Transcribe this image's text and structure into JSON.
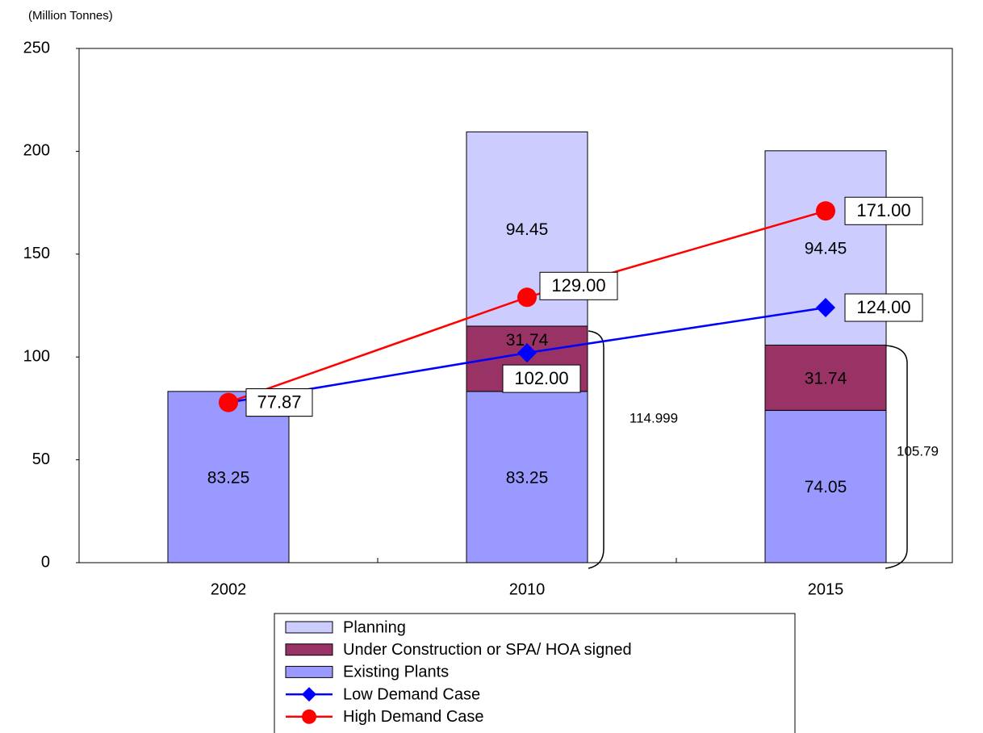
{
  "chart_data": {
    "type": "bar",
    "y_label": "(Million Tonnes)",
    "categories": [
      "2002",
      "2010",
      "2015"
    ],
    "ylim": [
      0,
      250
    ],
    "yticks": [
      0,
      50,
      100,
      150,
      200,
      250
    ],
    "grid": false,
    "series": [
      {
        "name": "Planning",
        "type": "bar",
        "color": "#ccccff",
        "values": [
          null,
          94.45,
          94.45
        ]
      },
      {
        "name": "Under Construction or SPA/ HOA signed",
        "type": "bar",
        "color": "#993366",
        "values": [
          null,
          31.74,
          31.74
        ]
      },
      {
        "name": "Existing Plants",
        "type": "bar",
        "color": "#9999ff",
        "values": [
          83.25,
          83.25,
          74.05
        ]
      },
      {
        "name": "Low Demand Case",
        "type": "line",
        "marker": "diamond",
        "color": "#0000ff",
        "values": [
          77.87,
          102,
          124
        ],
        "value_labels": [
          "77.87",
          "102.00",
          "124.00"
        ]
      },
      {
        "name": "High Demand Case",
        "type": "line",
        "marker": "circle",
        "color": "#ff0000",
        "values": [
          77.87,
          129,
          171
        ],
        "value_labels": [
          "77.87",
          "129.00",
          "171.00"
        ]
      }
    ],
    "annotations": [
      {
        "text": "114.999"
      },
      {
        "text": "105.79"
      }
    ]
  }
}
